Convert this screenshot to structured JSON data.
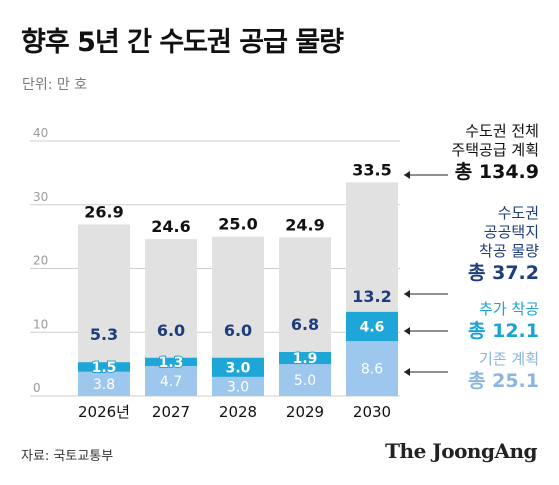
{
  "title": "향후 5년 간 수도권 공급 물량",
  "unit_label": "단위: 만 호",
  "source": "자료: 국토교통부",
  "brand": "The JoongAng",
  "colors": {
    "total": "#e1e1e1",
    "public": "#e1e1e1",
    "extra": "#1fa6d8",
    "plan": "#9ec7ee",
    "public_text": "#1f3d7a",
    "axis": "#cfcfcf",
    "tick": "#9a9a9a"
  },
  "legend": {
    "total": {
      "label_lines": [
        "수도권 전체",
        "주택공급 계획"
      ],
      "value": "총 134.9"
    },
    "public": {
      "label_lines": [
        "수도권",
        "공공택지",
        "착공 물량"
      ],
      "value": "총 37.2"
    },
    "extra": {
      "label_lines": [
        "추가 착공"
      ],
      "value": "총 12.1"
    },
    "plan": {
      "label_lines": [
        "기존 계획"
      ],
      "value": "총 25.1"
    }
  },
  "chart_data": {
    "type": "bar",
    "ylim": [
      0,
      40
    ],
    "yticks": [
      0,
      10,
      20,
      30,
      40
    ],
    "categories": [
      "2026년",
      "2027",
      "2028",
      "2029",
      "2030"
    ],
    "totals": [
      26.9,
      24.6,
      25.0,
      24.9,
      33.5
    ],
    "public_starts": [
      5.3,
      6.0,
      6.0,
      6.8,
      13.2
    ],
    "series": [
      {
        "name": "기존 계획",
        "values": [
          3.8,
          4.7,
          3.0,
          5.0,
          8.6
        ]
      },
      {
        "name": "추가 착공",
        "values": [
          1.5,
          1.3,
          3.0,
          1.9,
          4.6
        ]
      }
    ],
    "grid": false
  }
}
